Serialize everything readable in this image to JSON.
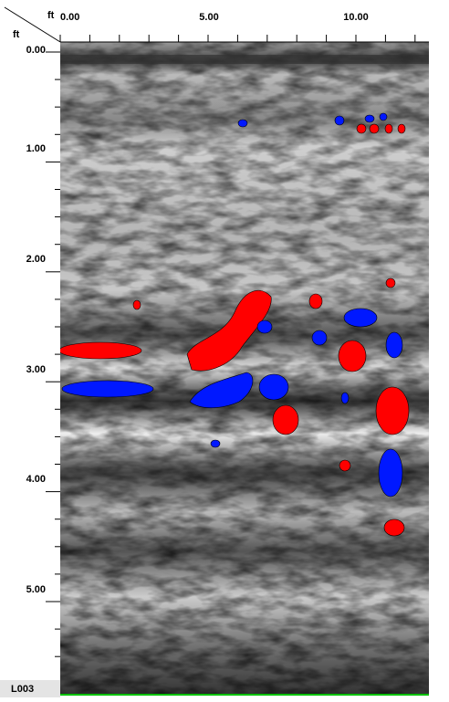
{
  "axes": {
    "corner_x_unit": "ft",
    "corner_y_unit": "ft",
    "x_labels": [
      "0.00",
      "5.00",
      "10.00"
    ],
    "y_labels": [
      "0.00",
      "1.00",
      "2.00",
      "3.00",
      "4.00",
      "5.00"
    ]
  },
  "line_label": "L003"
}
